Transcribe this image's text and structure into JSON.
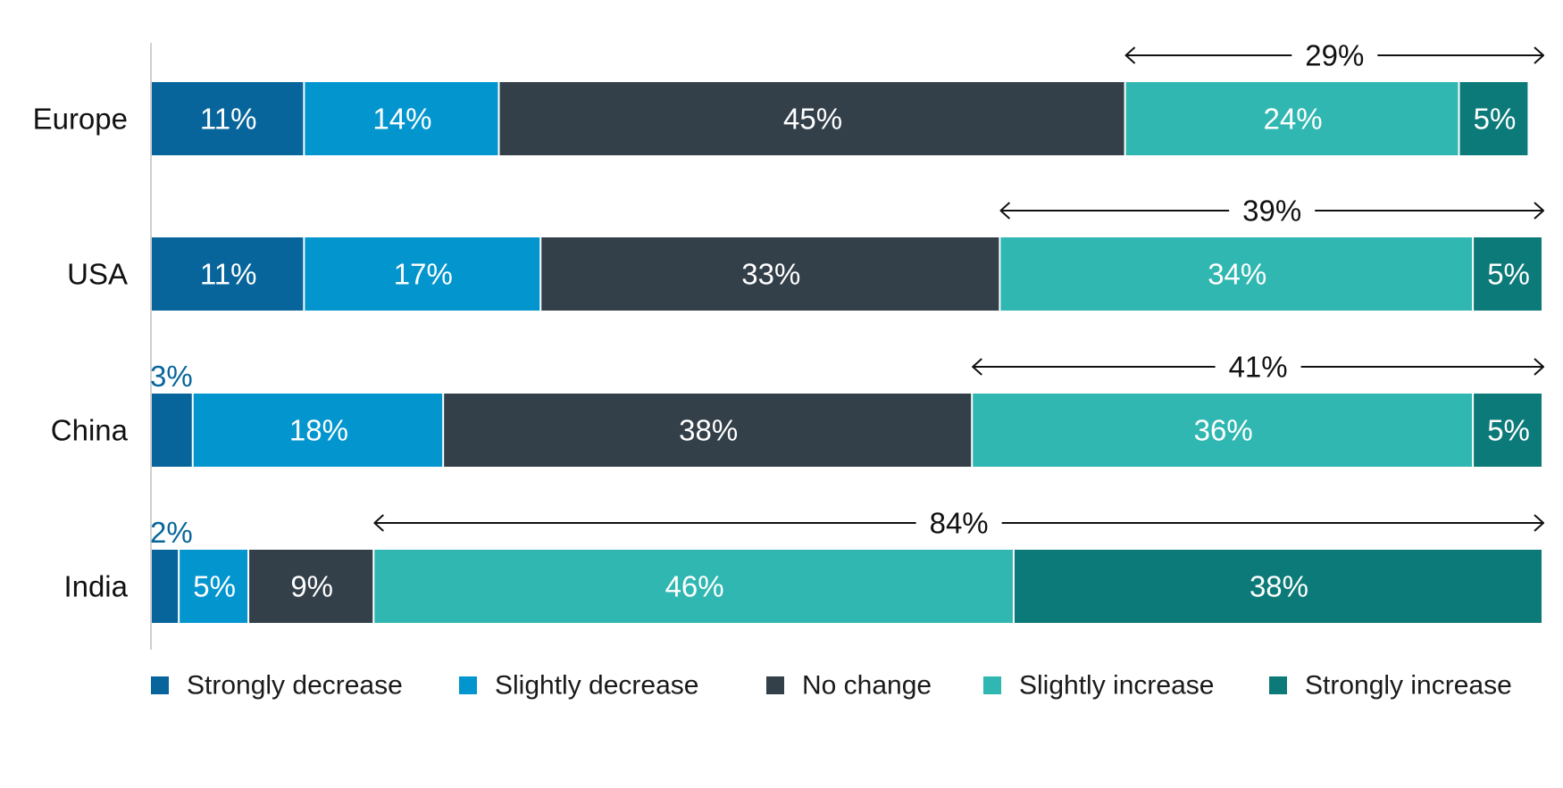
{
  "chart_data": {
    "type": "bar",
    "orientation": "horizontal",
    "stacked": true,
    "categories": [
      "Europe",
      "USA",
      "China",
      "India"
    ],
    "series": [
      {
        "name": "Strongly decrease",
        "color": "#07659B",
        "values": [
          11,
          11,
          3,
          2
        ],
        "labels": [
          "11%",
          "11%",
          "3%",
          "2%"
        ]
      },
      {
        "name": "Slightly decrease",
        "color": "#0396CE",
        "values": [
          14,
          17,
          18,
          5
        ],
        "labels": [
          "14%",
          "17%",
          "18%",
          "5%"
        ]
      },
      {
        "name": "No change",
        "color": "#333F49",
        "values": [
          45,
          33,
          38,
          9
        ],
        "labels": [
          "45%",
          "33%",
          "38%",
          "9%"
        ]
      },
      {
        "name": "Slightly increase",
        "color": "#31B7B1",
        "values": [
          24,
          34,
          36,
          46
        ],
        "labels": [
          "24%",
          "34%",
          "36%",
          "46%"
        ]
      },
      {
        "name": "Strongly increase",
        "color": "#0C7A78",
        "values": [
          5,
          5,
          5,
          38
        ],
        "labels": [
          "5%",
          "5%",
          "5%",
          "38%"
        ]
      }
    ],
    "increase_totals": [
      "29%",
      "39%",
      "41%",
      "84%"
    ],
    "xlim": [
      0,
      100
    ],
    "legend_position": "bottom",
    "grid": false
  }
}
